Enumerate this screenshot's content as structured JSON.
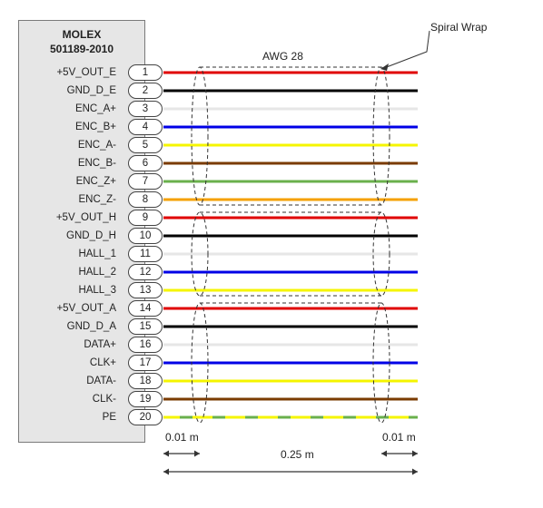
{
  "connector": {
    "manufacturer": "MOLEX",
    "part_number": "501189-2010"
  },
  "cable": {
    "gauge_label": "AWG 28",
    "spiral_wrap_label": "Spiral Wrap",
    "left_length_label": "0.01 m",
    "total_length_label": "0.25 m",
    "right_length_label": "0.01 m"
  },
  "pins": [
    {
      "num": "1",
      "signal": "+5V_OUT_E",
      "color": "#e00000"
    },
    {
      "num": "2",
      "signal": "GND_D_E",
      "color": "#000000"
    },
    {
      "num": "3",
      "signal": "ENC_A+",
      "color": "#e6e6e6"
    },
    {
      "num": "4",
      "signal": "ENC_B+",
      "color": "#0000e6"
    },
    {
      "num": "5",
      "signal": "ENC_A-",
      "color": "#f5f500"
    },
    {
      "num": "6",
      "signal": "ENC_B-",
      "color": "#7a3b00"
    },
    {
      "num": "7",
      "signal": "ENC_Z+",
      "color": "#6ab04c"
    },
    {
      "num": "8",
      "signal": "ENC_Z-",
      "color": "#f5a000"
    },
    {
      "num": "9",
      "signal": "+5V_OUT_H",
      "color": "#e00000"
    },
    {
      "num": "10",
      "signal": "GND_D_H",
      "color": "#000000"
    },
    {
      "num": "11",
      "signal": "HALL_1",
      "color": "#e6e6e6"
    },
    {
      "num": "12",
      "signal": "HALL_2",
      "color": "#0000e6"
    },
    {
      "num": "13",
      "signal": "HALL_3",
      "color": "#f5f500"
    },
    {
      "num": "14",
      "signal": "+5V_OUT_A",
      "color": "#e00000"
    },
    {
      "num": "15",
      "signal": "GND_D_A",
      "color": "#000000"
    },
    {
      "num": "16",
      "signal": "DATA+",
      "color": "#e6e6e6"
    },
    {
      "num": "17",
      "signal": "CLK+",
      "color": "#0000e6"
    },
    {
      "num": "18",
      "signal": "DATA-",
      "color": "#f5f500"
    },
    {
      "num": "19",
      "signal": "CLK-",
      "color": "#7a3b00"
    },
    {
      "num": "20",
      "signal": "PE",
      "color": "#f5f500",
      "stripe": "#6ab04c"
    }
  ]
}
